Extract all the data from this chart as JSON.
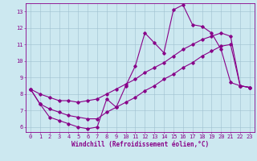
{
  "xlabel": "Windchill (Refroidissement éolien,°C)",
  "bg_color": "#cce8f0",
  "grid_color": "#9fbfcf",
  "line_color": "#880088",
  "xlim_min": -0.5,
  "xlim_max": 23.5,
  "ylim_min": 5.7,
  "ylim_max": 13.5,
  "yticks": [
    6,
    7,
    8,
    9,
    10,
    11,
    12,
    13
  ],
  "xticks": [
    0,
    1,
    2,
    3,
    4,
    5,
    6,
    7,
    8,
    9,
    10,
    11,
    12,
    13,
    14,
    15,
    16,
    17,
    18,
    19,
    20,
    21,
    22,
    23
  ],
  "line1_x": [
    0,
    1,
    2,
    3,
    4,
    5,
    6,
    7,
    8,
    9,
    10,
    11,
    12,
    13,
    14,
    15,
    16,
    17,
    18,
    19,
    20,
    21,
    22,
    23
  ],
  "line1_y": [
    8.3,
    7.4,
    6.6,
    6.4,
    6.2,
    6.0,
    5.9,
    6.0,
    7.7,
    7.2,
    8.5,
    9.7,
    11.7,
    11.1,
    10.5,
    13.1,
    13.4,
    12.2,
    12.1,
    11.7,
    10.7,
    8.7,
    8.5,
    8.4
  ],
  "line2_x": [
    0,
    1,
    2,
    3,
    4,
    5,
    6,
    7,
    8,
    9,
    10,
    11,
    12,
    13,
    14,
    15,
    16,
    17,
    18,
    19,
    20,
    21,
    22,
    23
  ],
  "line2_y": [
    8.3,
    8.0,
    7.8,
    7.6,
    7.6,
    7.5,
    7.6,
    7.7,
    8.0,
    8.3,
    8.6,
    8.9,
    9.3,
    9.6,
    9.9,
    10.3,
    10.7,
    11.0,
    11.3,
    11.5,
    11.7,
    11.5,
    8.5,
    8.4
  ],
  "line3_x": [
    0,
    1,
    2,
    3,
    4,
    5,
    6,
    7,
    8,
    9,
    10,
    11,
    12,
    13,
    14,
    15,
    16,
    17,
    18,
    19,
    20,
    21,
    22,
    23
  ],
  "line3_y": [
    8.3,
    7.4,
    7.1,
    6.9,
    6.7,
    6.6,
    6.5,
    6.5,
    6.9,
    7.2,
    7.5,
    7.8,
    8.2,
    8.5,
    8.9,
    9.2,
    9.6,
    9.9,
    10.3,
    10.6,
    10.9,
    11.0,
    8.5,
    8.4
  ],
  "marker": "D",
  "markersize": 1.8,
  "linewidth": 0.8,
  "font_color": "#880088",
  "tick_fontsize": 5.0,
  "label_fontsize": 5.5
}
